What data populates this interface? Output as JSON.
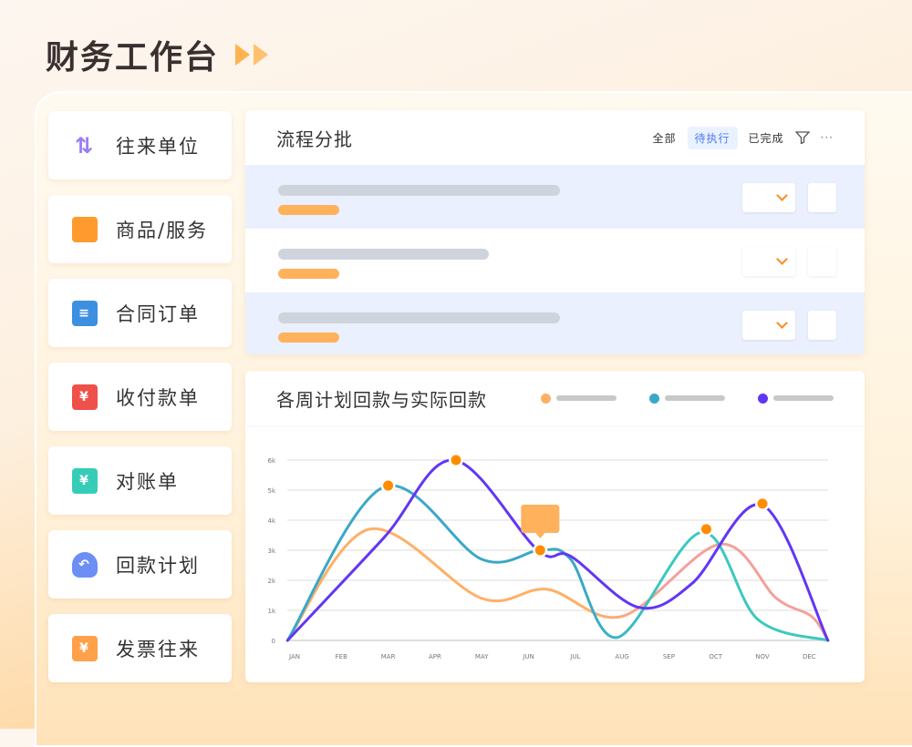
{
  "page_title": "财务工作台",
  "nav": [
    {
      "label": "往来单位",
      "icon": "exchange-arrows-icon",
      "color": "#9b7cf6"
    },
    {
      "label": "商品/服务",
      "icon": "shopping-bag-icon",
      "color": "#ff9a2e"
    },
    {
      "label": "合同订单",
      "icon": "contract-clipboard-icon",
      "color": "#3d8fe0"
    },
    {
      "label": "收付款单",
      "icon": "payment-receipt-icon",
      "color": "#f0504a"
    },
    {
      "label": "对账单",
      "icon": "statement-book-icon",
      "color": "#36cdb8"
    },
    {
      "label": "回款计划",
      "icon": "money-bag-icon",
      "color": "#6d8ff5"
    },
    {
      "label": "发票往来",
      "icon": "invoice-ticket-icon",
      "color": "#ffa14a"
    }
  ],
  "process": {
    "title": "流程分批",
    "filters": [
      "全部",
      "待执行",
      "已完成"
    ],
    "active_filter": "待执行"
  },
  "chart_data": {
    "type": "line",
    "title": "各周计划回款与实际回款",
    "categories": [
      "JAN",
      "FEB",
      "MAR",
      "APR",
      "MAY",
      "JUN",
      "JUL",
      "AUG",
      "SEP",
      "OCT",
      "NOV",
      "DEC"
    ],
    "y_ticks": [
      "0",
      "1k",
      "2k",
      "3k",
      "4k",
      "5k",
      "6k"
    ],
    "ylim": [
      0,
      6000
    ],
    "grid": true,
    "legend": "top-right",
    "series": [
      {
        "color": "#ffb066",
        "end_color": "#f4a09a",
        "points": [
          [
            -0.15,
            0
          ],
          [
            1.6,
            3700
          ],
          [
            4.0,
            1400
          ],
          [
            5.4,
            1700
          ],
          [
            7.0,
            800
          ],
          [
            9.1,
            3200
          ],
          [
            10.3,
            1400
          ],
          [
            11.05,
            800
          ],
          [
            11.4,
            0
          ]
        ]
      },
      {
        "color": "#3aa8c8",
        "end_color": "#3cc9bf",
        "points": [
          [
            -0.15,
            0
          ],
          [
            1.9,
            5100
          ],
          [
            4.0,
            2700
          ],
          [
            5.25,
            3000
          ],
          [
            5.9,
            2700
          ],
          [
            6.9,
            100
          ],
          [
            8.7,
            3600
          ],
          [
            9.9,
            700
          ],
          [
            11.4,
            0
          ]
        ]
      },
      {
        "color": "#6236f5",
        "end_color": "#6236f5",
        "points": [
          [
            -0.15,
            0
          ],
          [
            1.9,
            3400
          ],
          [
            3.4,
            6000
          ],
          [
            5.2,
            3000
          ],
          [
            5.9,
            2800
          ],
          [
            7.35,
            1100
          ],
          [
            8.5,
            1900
          ],
          [
            10.0,
            4500
          ],
          [
            11.4,
            0
          ]
        ]
      }
    ],
    "markers": [
      [
        2.0,
        5150
      ],
      [
        3.45,
        6000
      ],
      [
        5.25,
        3000
      ],
      [
        8.8,
        3700
      ],
      [
        10.0,
        4550
      ]
    ],
    "marker_color": "#ff8c00",
    "tooltip_color": "#ffb15c"
  }
}
